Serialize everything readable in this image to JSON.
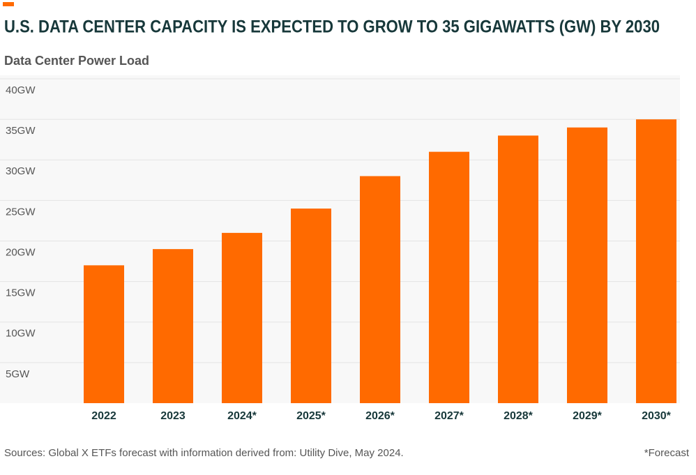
{
  "chart_data": {
    "type": "bar",
    "title": "U.S. DATA CENTER CAPACITY IS EXPECTED TO GROW TO 35 GIGAWATTS (GW) BY 2030",
    "subtitle": "Data Center Power Load",
    "categories": [
      "2022",
      "2023",
      "2024*",
      "2025*",
      "2026*",
      "2027*",
      "2028*",
      "2029*",
      "2030*"
    ],
    "values": [
      17,
      19,
      21,
      24,
      28,
      31,
      33,
      34,
      35
    ],
    "color": "#ff6a00",
    "ylim": [
      0,
      40
    ],
    "yticks": [
      {
        "value": 5,
        "label": "5GW"
      },
      {
        "value": 10,
        "label": "10GW"
      },
      {
        "value": 15,
        "label": "15GW"
      },
      {
        "value": 20,
        "label": "20GW"
      },
      {
        "value": 25,
        "label": "25GW"
      },
      {
        "value": 30,
        "label": "30GW"
      },
      {
        "value": 35,
        "label": "35GW"
      },
      {
        "value": 40,
        "label": "40GW"
      }
    ],
    "grid": true,
    "source": "Sources: Global X ETFs forecast with information derived from: Utility Dive, May 2024.",
    "note": "*Forecast"
  }
}
